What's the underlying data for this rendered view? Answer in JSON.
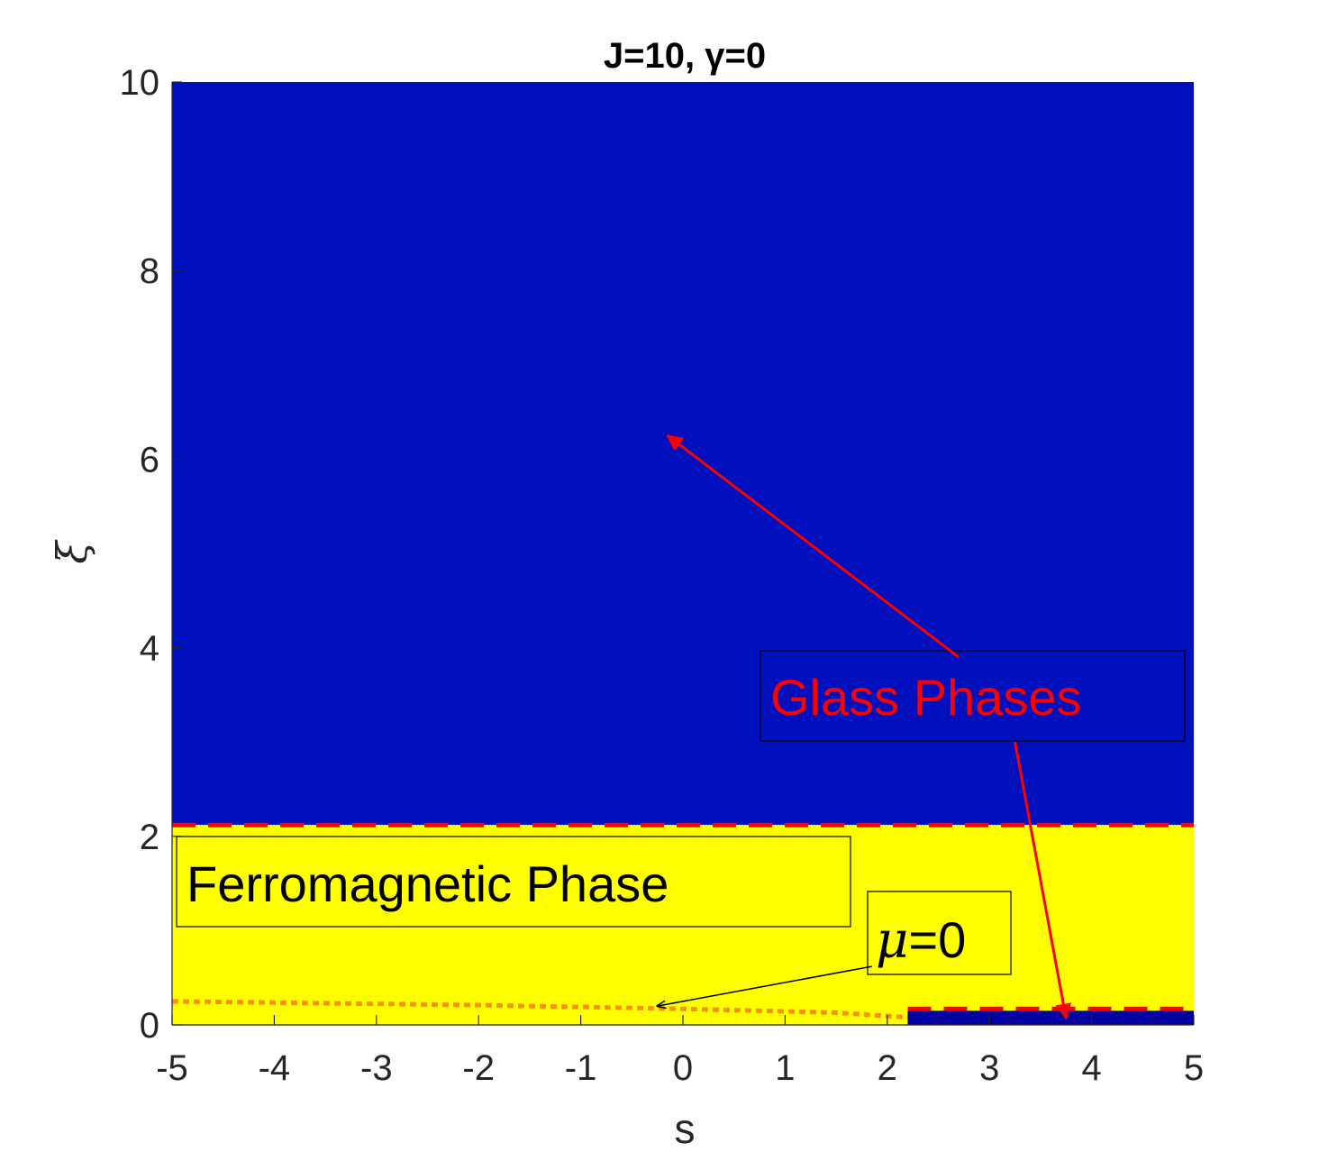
{
  "chart_data": {
    "type": "heatmap",
    "title": "J=10, γ=0",
    "xlabel": "s",
    "ylabel": "ξ",
    "xlim": [
      -5,
      5
    ],
    "ylim": [
      0,
      10
    ],
    "xticks": [
      -5,
      -4,
      -3,
      -2,
      -1,
      0,
      1,
      2,
      3,
      4,
      5
    ],
    "yticks": [
      0,
      2,
      4,
      6,
      8,
      10
    ],
    "grid": false,
    "colors": {
      "glass": "#0010bc",
      "ferro": "#ffff00",
      "small_glass": "#0000a0",
      "boundary": "#ff0000",
      "mu_line": "#ff8c1a",
      "arrow_red": "#ff0000",
      "arrow_black": "#000000"
    },
    "regions": [
      {
        "name": "Glass Phases",
        "s_range": [
          -5,
          5
        ],
        "xi_range": [
          2.12,
          10
        ],
        "color": "#0010bc"
      },
      {
        "name": "Ferromagnetic Phase",
        "s_range": [
          -5,
          5
        ],
        "xi_range": [
          0,
          2.12
        ],
        "color": "#ffff00"
      },
      {
        "name": "Glass Phases",
        "s_range": [
          2.2,
          5
        ],
        "xi_range": [
          0,
          0.15
        ],
        "color": "#0000a0"
      }
    ],
    "boundaries": [
      {
        "style": "dashed",
        "color": "#ff0000",
        "points": [
          [
            -5,
            2.12
          ],
          [
            5,
            2.12
          ]
        ]
      },
      {
        "style": "dashed",
        "color": "#ff0000",
        "points": [
          [
            2.2,
            0.17
          ],
          [
            5,
            0.17
          ]
        ]
      }
    ],
    "mu_zero_line": {
      "style": "dotted",
      "color": "#ff8c1a",
      "points": [
        [
          -5,
          0.25
        ],
        [
          -2,
          0.21
        ],
        [
          0,
          0.17
        ],
        [
          1.5,
          0.13
        ],
        [
          2.2,
          0.08
        ]
      ]
    },
    "annotations": {
      "glass_label": "Glass Phases",
      "ferro_label": "Ferromagnetic Phase",
      "mu_symbol": "μ",
      "mu_value": "=0"
    },
    "arrows": [
      {
        "color": "#ff0000",
        "from": [
          2.7,
          3.9
        ],
        "to": [
          -0.15,
          6.25
        ]
      },
      {
        "color": "#ff0000",
        "from": [
          3.25,
          3.0
        ],
        "to": [
          3.75,
          0.07
        ]
      },
      {
        "color": "#000000",
        "from": [
          1.85,
          0.62
        ],
        "to": [
          -0.25,
          0.2
        ]
      }
    ]
  }
}
